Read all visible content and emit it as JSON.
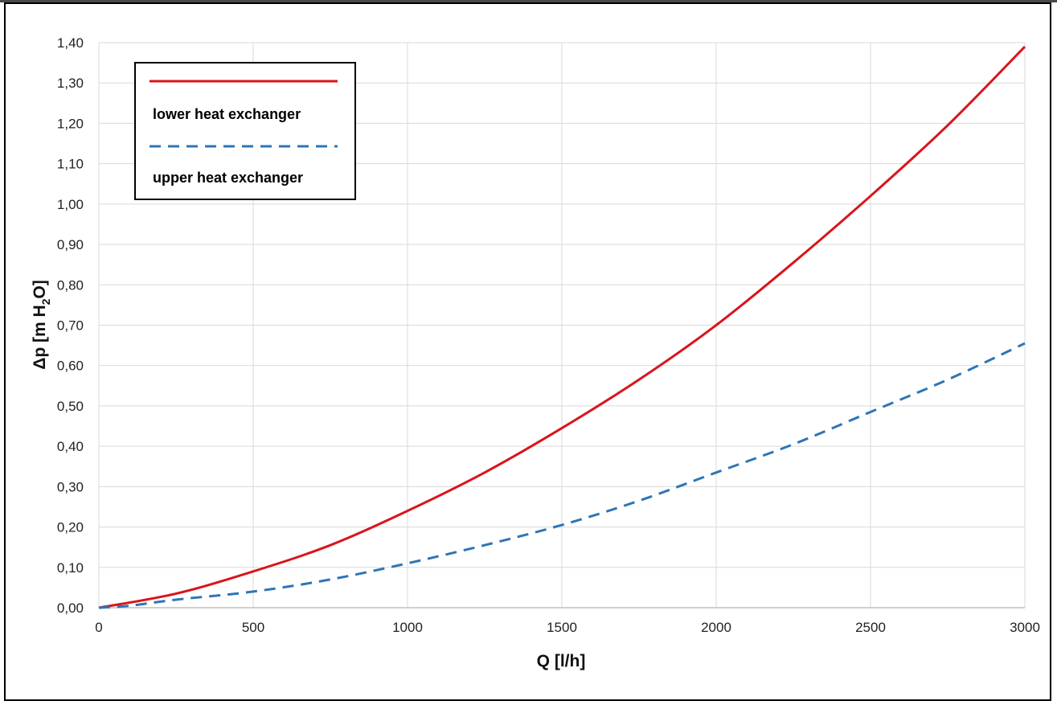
{
  "chart_data": {
    "type": "line",
    "xlabel": "Q [l/h]",
    "ylabel": {
      "prefix": "Δp [m H",
      "subscript": "2",
      "suffix": "O]"
    },
    "xlim": [
      0,
      3000
    ],
    "ylim": [
      0,
      1.4
    ],
    "x_ticks": [
      "0",
      "500",
      "1000",
      "1500",
      "2000",
      "2500",
      "3000"
    ],
    "y_ticks": [
      "0,00",
      "0,10",
      "0,20",
      "0,30",
      "0,40",
      "0,50",
      "0,60",
      "0,70",
      "0,80",
      "0,90",
      "1,00",
      "1,10",
      "1,20",
      "1,30",
      "1,40"
    ],
    "grid": true,
    "legend_position": "top-left",
    "series": [
      {
        "name": "lower heat exchanger",
        "color": "#d9141b",
        "style": "solid",
        "x": [
          0,
          250,
          500,
          750,
          1000,
          1250,
          1500,
          1750,
          2000,
          2250,
          2500,
          2750,
          3000
        ],
        "y": [
          0,
          0.035,
          0.09,
          0.155,
          0.24,
          0.335,
          0.445,
          0.565,
          0.7,
          0.855,
          1.02,
          1.195,
          1.39
        ]
      },
      {
        "name": "upper heat exchanger",
        "color": "#2e75b6",
        "style": "dashed",
        "x": [
          0,
          100,
          250,
          500,
          750,
          1000,
          1250,
          1500,
          1750,
          2000,
          2250,
          2500,
          2750,
          3000
        ],
        "y": [
          0,
          0.005,
          0.02,
          0.04,
          0.07,
          0.11,
          0.155,
          0.205,
          0.265,
          0.335,
          0.405,
          0.485,
          0.565,
          0.655
        ]
      }
    ]
  }
}
